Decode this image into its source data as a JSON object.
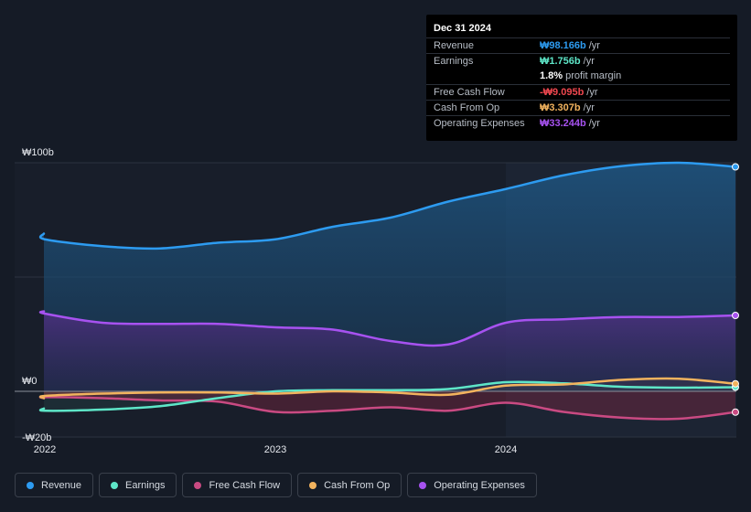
{
  "tooltip": {
    "date": "Dec 31 2024",
    "rows": [
      {
        "label": "Revenue",
        "value": "₩98.166b",
        "unit": "/yr",
        "color": "#2d9bf0"
      },
      {
        "label": "Earnings",
        "value": "₩1.756b",
        "unit": "/yr",
        "color": "#5ee6c8"
      },
      {
        "label": "",
        "value": "1.8%",
        "unit": "profit margin",
        "color": "#ffffff"
      },
      {
        "label": "Free Cash Flow",
        "value": "-₩9.095b",
        "unit": "/yr",
        "color": "#f0474f"
      },
      {
        "label": "Cash From Op",
        "value": "₩3.307b",
        "unit": "/yr",
        "color": "#f2b35e"
      },
      {
        "label": "Operating Expenses",
        "value": "₩33.244b",
        "unit": "/yr",
        "color": "#a752f0"
      }
    ]
  },
  "chart_data": {
    "type": "area",
    "title": "",
    "y_tick_labels": [
      "₩100b",
      "₩0",
      "-₩20b"
    ],
    "ylim": [
      -20,
      100
    ],
    "x_tick_labels": [
      "2022",
      "2023",
      "2024"
    ],
    "x": [
      2021.75,
      2022.0,
      2022.25,
      2022.5,
      2022.75,
      2023.0,
      2023.25,
      2023.5,
      2023.75,
      2024.0,
      2024.25,
      2024.5,
      2024.75,
      2025.0
    ],
    "series": [
      {
        "name": "Revenue",
        "color": "#2d9bf0",
        "values": [
          69,
          66.5,
          63.5,
          62.5,
          65,
          66.5,
          72,
          76,
          83,
          88.5,
          94.5,
          98.5,
          100,
          98.2
        ]
      },
      {
        "name": "Earnings",
        "color": "#5ee6c8",
        "values": [
          -7.5,
          -8.5,
          -8,
          -6.5,
          -3,
          0,
          0.5,
          0.5,
          1,
          4,
          3.5,
          2,
          1.6,
          1.8
        ]
      },
      {
        "name": "Free Cash Flow",
        "color": "#c94a82",
        "values": [
          -3,
          -2.5,
          -3,
          -4,
          -4.5,
          -9,
          -8.5,
          -7,
          -8.5,
          -5,
          -9,
          -11.5,
          -12,
          -9.1
        ]
      },
      {
        "name": "Cash From Op",
        "color": "#f2b35e",
        "values": [
          -3,
          -2,
          -1,
          -0.5,
          -0.5,
          -1,
          0,
          -0.5,
          -1.5,
          2.5,
          3,
          5,
          5.5,
          3.3
        ]
      },
      {
        "name": "Operating Expenses",
        "color": "#a752f0",
        "values": [
          35,
          34,
          30,
          29.5,
          29.5,
          28,
          27,
          22,
          20.5,
          30,
          31.5,
          32.5,
          32.5,
          33.2
        ]
      }
    ],
    "highlight_from": 2024.0,
    "legend": [
      "Revenue",
      "Earnings",
      "Free Cash Flow",
      "Cash From Op",
      "Operating Expenses"
    ]
  }
}
